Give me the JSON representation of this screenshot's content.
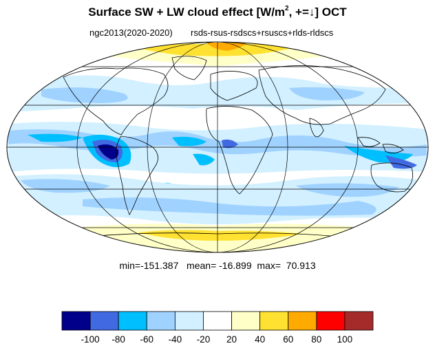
{
  "title": {
    "main": "Surface SW + LW cloud effect [W/m",
    "sup": "2",
    "sign": ", +=",
    "arrow": "↓",
    "month": "]  OCT"
  },
  "subtitle": {
    "left": "ngc2013(2020-2020)",
    "right": "rsds-rsus-rsdscs+rsuscs+rlds-rldscs"
  },
  "stats": {
    "min": "min=-151.387",
    "mean": "mean= -16.899",
    "max": "max=  70.913"
  },
  "colorbar": {
    "colors": [
      "#00008b",
      "#4169e1",
      "#00bfff",
      "#a0d2ff",
      "#d2f0ff",
      "#ffffff",
      "#ffffc8",
      "#ffe132",
      "#ffaa00",
      "#ff0000",
      "#a52a2a"
    ],
    "ticks": [
      "-100",
      "-80",
      "-60",
      "-40",
      "-20",
      "20",
      "40",
      "60",
      "80",
      "100"
    ]
  },
  "map": {
    "projection": "Mollweide",
    "central_longitude": 0,
    "gridlines": true
  }
}
